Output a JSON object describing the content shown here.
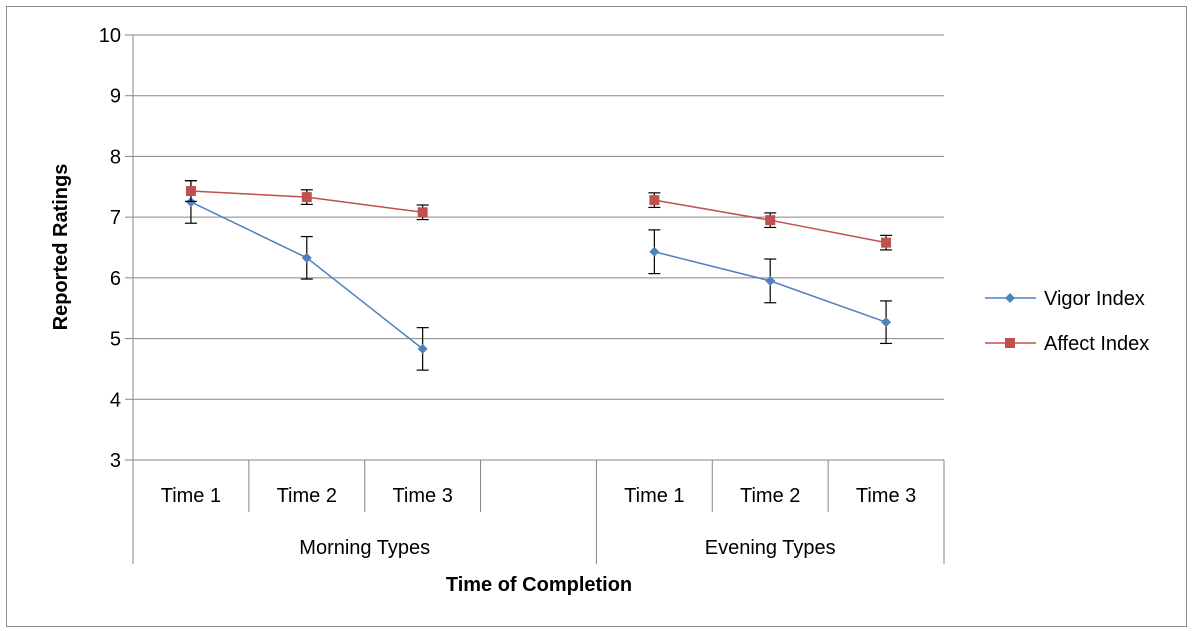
{
  "chart_data": {
    "type": "line",
    "xlabel": "Time of Completion",
    "ylabel": "Reported Ratings",
    "ylim": [
      3,
      10
    ],
    "yticks": [
      3,
      4,
      5,
      6,
      7,
      8,
      9,
      10
    ],
    "grid": true,
    "legend_position": "right",
    "groups": [
      {
        "name": "Morning Types",
        "categories": [
          "Time 1",
          "Time 2",
          "Time 3",
          ""
        ]
      },
      {
        "name": "Evening Types",
        "categories": [
          "Time 1",
          "Time 2",
          "Time 3"
        ]
      }
    ],
    "series": [
      {
        "name": "Vigor Index",
        "color": "#4F81BD",
        "marker": "diamond",
        "segments": [
          {
            "group": 0,
            "values": [
              7.25,
              6.33,
              4.83
            ],
            "errors": [
              0.35,
              0.35,
              0.35
            ]
          },
          {
            "group": 1,
            "values": [
              6.43,
              5.95,
              5.27
            ],
            "errors": [
              0.36,
              0.36,
              0.35
            ]
          }
        ]
      },
      {
        "name": "Affect Index",
        "color": "#C0504D",
        "marker": "square",
        "segments": [
          {
            "group": 0,
            "values": [
              7.43,
              7.33,
              7.08
            ],
            "errors": [
              0.17,
              0.12,
              0.12
            ]
          },
          {
            "group": 1,
            "values": [
              7.28,
              6.95,
              6.58
            ],
            "errors": [
              0.12,
              0.12,
              0.12
            ]
          }
        ]
      }
    ]
  }
}
